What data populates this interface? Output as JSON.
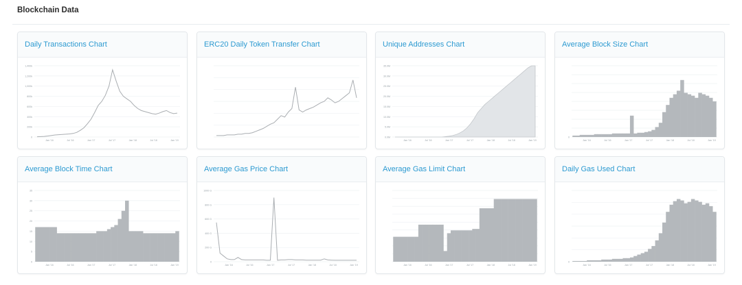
{
  "header": {
    "title": "Blockchain Data"
  },
  "cards": [
    {
      "title": "Daily Transactions Chart",
      "chart_kind": "line",
      "y_ticks": [
        "0",
        "200k",
        "400k",
        "600k",
        "800k",
        "1,000k",
        "1,200k",
        "1,400k"
      ],
      "x_ticks": [
        "Jan '16",
        "Jul '16",
        "Jan '17",
        "Jul '17",
        "Jan '18",
        "Jul '18",
        "Jan '19"
      ],
      "y_max": 1400,
      "series": [
        5,
        8,
        12,
        20,
        30,
        40,
        45,
        50,
        55,
        60,
        70,
        90,
        130,
        180,
        260,
        350,
        480,
        620,
        700,
        820,
        1000,
        1320,
        1100,
        900,
        800,
        750,
        700,
        620,
        560,
        520,
        500,
        480,
        460,
        450,
        470,
        500,
        520,
        480,
        460,
        470
      ]
    },
    {
      "title": "ERC20 Daily Token Transfer Chart",
      "chart_kind": "line",
      "y_ticks": [
        "",
        "",
        "",
        "",
        "",
        "",
        ""
      ],
      "x_ticks": [
        "",
        "",
        "",
        "",
        ""
      ],
      "y_max": 100,
      "series": [
        2,
        2,
        2,
        3,
        3,
        3,
        4,
        4,
        5,
        5,
        6,
        8,
        10,
        12,
        15,
        18,
        20,
        25,
        30,
        28,
        35,
        40,
        70,
        38,
        35,
        38,
        40,
        42,
        45,
        48,
        50,
        55,
        52,
        48,
        50,
        54,
        58,
        62,
        80,
        55
      ]
    },
    {
      "title": "Unique Addresses Chart",
      "chart_kind": "area",
      "y_ticks": [
        "0.0M",
        "5.0M",
        "10.0M",
        "15.0M",
        "20.0M",
        "25.0M",
        "30.0M",
        "35.0M"
      ],
      "x_ticks": [
        "Jan '16",
        "Jul '16",
        "Jan '17",
        "Jul '17",
        "Jan '18",
        "Jul '18",
        "Jan '19"
      ],
      "y_max": 35,
      "series": [
        0,
        0,
        0,
        0,
        0,
        0,
        0,
        0,
        0,
        0,
        0,
        0,
        0,
        0,
        0.2,
        0.4,
        0.7,
        1.2,
        2,
        3,
        4.5,
        6.5,
        9,
        12,
        14,
        16,
        17.5,
        19,
        20.5,
        22,
        23.5,
        25,
        26.5,
        28,
        29.5,
        31,
        32.5,
        34,
        35.5,
        37
      ]
    },
    {
      "title": "Average Block Size Chart",
      "chart_kind": "bars",
      "y_ticks": [
        "0",
        "",
        "",
        "",
        "",
        "",
        "",
        "",
        ""
      ],
      "x_ticks": [
        "Jan '16",
        "Jul '16",
        "Jan '17",
        "Jul '17",
        "Jan '18",
        "Jul '18",
        "Jan '19"
      ],
      "y_max": 100,
      "series": [
        2,
        2,
        3,
        3,
        3,
        3,
        4,
        4,
        4,
        4,
        4,
        5,
        5,
        5,
        5,
        5,
        30,
        5,
        6,
        6,
        7,
        8,
        10,
        14,
        20,
        35,
        45,
        55,
        60,
        65,
        80,
        62,
        60,
        58,
        55,
        62,
        60,
        58,
        55,
        50
      ]
    },
    {
      "title": "Average Block Time Chart",
      "chart_kind": "bars",
      "y_ticks": [
        "0",
        "5",
        "10",
        "15",
        "20",
        "25",
        "30",
        "35"
      ],
      "x_ticks": [
        "Jan '16",
        "Jul '16",
        "Jan '17",
        "Jul '17",
        "Jan '18",
        "Jul '18",
        "Jan '19"
      ],
      "y_max": 35,
      "series": [
        17,
        17,
        17,
        17,
        17,
        17,
        14,
        14,
        14,
        14,
        14,
        14,
        14,
        14,
        14,
        14,
        14,
        15,
        15,
        15,
        16,
        17,
        18,
        21,
        25,
        30,
        15,
        15,
        15,
        15,
        14,
        14,
        14,
        14,
        14,
        14,
        14,
        14,
        14,
        15
      ]
    },
    {
      "title": "Average Gas Price Chart",
      "chart_kind": "line",
      "y_ticks": [
        "0",
        "200 G",
        "400 G",
        "600 G",
        "800 G",
        "1000 G"
      ],
      "x_ticks": [
        "Jan '16",
        "Jul '16",
        "Jan '17",
        "Jul '17",
        "Jan '18",
        "Jul '18",
        "Jan '19"
      ],
      "y_max": 1000,
      "series": [
        550,
        120,
        80,
        40,
        30,
        30,
        60,
        30,
        25,
        25,
        25,
        25,
        25,
        25,
        20,
        20,
        900,
        20,
        25,
        25,
        30,
        30,
        25,
        25,
        25,
        22,
        22,
        22,
        22,
        22,
        40,
        25,
        22,
        20,
        20,
        20,
        20,
        20,
        20,
        20
      ]
    },
    {
      "title": "Average Gas Limit Chart",
      "chart_kind": "bars",
      "y_ticks": [
        "",
        "",
        "",
        "",
        "",
        "",
        "",
        "",
        "",
        ""
      ],
      "x_ticks": [
        "Jan '16",
        "Jul '16",
        "Jan '17",
        "Jul '17",
        "Jan '18",
        "Jul '18",
        "Jan '19"
      ],
      "y_max": 100,
      "series": [
        35,
        35,
        35,
        35,
        35,
        35,
        35,
        52,
        52,
        52,
        52,
        52,
        52,
        52,
        15,
        40,
        44,
        44,
        44,
        44,
        44,
        44,
        46,
        46,
        75,
        75,
        75,
        75,
        88,
        88,
        88,
        88,
        88,
        88,
        88,
        88,
        88,
        88,
        88,
        88
      ]
    },
    {
      "title": "Daily Gas Used Chart",
      "chart_kind": "bars",
      "y_ticks": [
        "0",
        "",
        "",
        "",
        "",
        "",
        ""
      ],
      "x_ticks": [
        "Jan '16",
        "Jul '16",
        "Jan '17",
        "Jul '17",
        "Jan '18",
        "Jul '18",
        "Jan '19"
      ],
      "y_max": 100,
      "series": [
        1,
        1,
        1,
        1,
        2,
        2,
        2,
        2,
        3,
        3,
        3,
        4,
        4,
        4,
        5,
        5,
        6,
        8,
        10,
        12,
        14,
        18,
        22,
        30,
        40,
        55,
        70,
        80,
        85,
        88,
        86,
        82,
        84,
        88,
        86,
        84,
        80,
        82,
        78,
        70
      ]
    }
  ]
}
